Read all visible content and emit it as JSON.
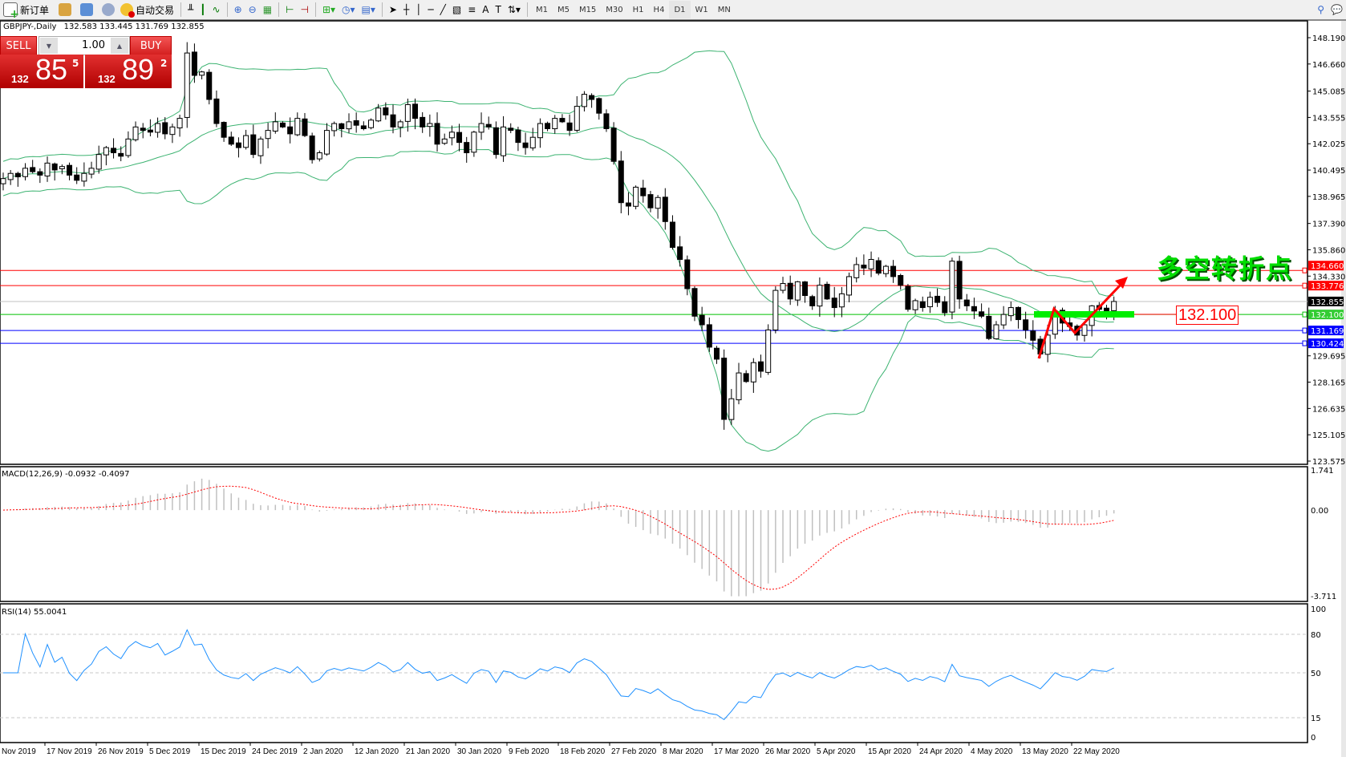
{
  "toolbar": {
    "new_order": "新订单",
    "auto_trading": "自动交易",
    "timeframes": [
      "M1",
      "M5",
      "M15",
      "M30",
      "H1",
      "H4",
      "D1",
      "W1",
      "MN"
    ],
    "active_timeframe": "D1"
  },
  "chart_header": {
    "symbol": "GBPJPY-,Daily",
    "ohlc": "132.583 133.445 131.769 132.855"
  },
  "trade_panel": {
    "sell_label": "SELL",
    "buy_label": "BUY",
    "lot": "1.00",
    "sell_big": "132",
    "sell_main": "85",
    "sell_sup": "5",
    "buy_big": "132",
    "buy_main": "89",
    "buy_sup": "2"
  },
  "annotations": {
    "turning_point": "多空转折点",
    "level_label": "132.100"
  },
  "colors": {
    "resistance": "#ff0000",
    "support": "#0000ff",
    "pivot": "#00c000",
    "bands": "#3cb371",
    "signal": "#ff0000",
    "histogram": "#c0c0c0"
  },
  "chart_data": [
    {
      "type": "candlestick",
      "title": "GBPJPY-,Daily",
      "indicator": "Bollinger Bands",
      "closes": [
        140.0,
        140.3,
        140.1,
        140.6,
        140.4,
        140.2,
        140.9,
        140.5,
        140.7,
        140.2,
        139.9,
        140.3,
        140.6,
        141.4,
        141.8,
        141.5,
        141.3,
        142.3,
        143.0,
        142.8,
        142.7,
        143.2,
        142.6,
        143.0,
        143.5,
        147.3,
        146.0,
        146.2,
        144.6,
        143.2,
        142.4,
        142.0,
        141.8,
        142.5,
        141.4,
        142.3,
        142.8,
        143.3,
        143.0,
        142.6,
        143.5,
        142.5,
        141.1,
        141.5,
        142.8,
        143.2,
        142.9,
        143.3,
        143.1,
        142.9,
        143.4,
        144.1,
        143.7,
        143.0,
        143.3,
        144.3,
        143.5,
        143.0,
        143.2,
        142.0,
        142.3,
        142.7,
        142.1,
        141.5,
        142.7,
        143.2,
        143.0,
        141.4,
        143.0,
        142.8,
        142.1,
        141.8,
        142.4,
        143.2,
        142.9,
        143.5,
        143.3,
        142.8,
        144.2,
        144.9,
        144.6,
        143.8,
        142.9,
        141.0,
        138.6,
        138.4,
        139.5,
        139.0,
        138.3,
        138.9,
        137.5,
        136.0,
        135.3,
        133.6,
        132.0,
        131.5,
        130.2,
        129.5,
        126.0,
        127.2,
        128.7,
        128.2,
        129.3,
        128.8,
        131.2,
        133.5,
        133.9,
        133.0,
        134.0,
        133.2,
        132.6,
        133.8,
        133.0,
        132.5,
        133.3,
        134.3,
        135.0,
        134.8,
        135.3,
        134.5,
        134.9,
        134.3,
        133.8,
        132.4,
        132.9,
        132.5,
        133.1,
        132.8,
        132.2,
        135.2,
        133.0,
        132.6,
        132.3,
        132.0,
        130.7,
        131.5,
        132.1,
        132.5,
        131.8,
        131.2,
        130.6,
        129.8,
        130.9,
        132.3,
        131.6,
        131.4,
        130.9,
        131.5,
        132.6,
        132.4,
        132.3,
        132.855
      ],
      "price_ticks": [
        "148.190",
        "146.660",
        "145.085",
        "143.555",
        "142.025",
        "140.495",
        "138.965",
        "137.390",
        "135.860",
        "134.330",
        "129.695",
        "128.165",
        "126.635",
        "125.105",
        "123.575"
      ],
      "ylim": [
        123.575,
        148.19
      ],
      "levels": [
        {
          "value": 134.66,
          "label": "134.660",
          "color": "#ff0000"
        },
        {
          "value": 133.776,
          "label": "133.776",
          "color": "#ff0000"
        },
        {
          "value": 132.855,
          "label": "132.855",
          "color": "#c0c0c0",
          "tag": "#000000"
        },
        {
          "value": 132.1,
          "label": "132.100",
          "color": "#00c000",
          "tag": "#33cc33"
        },
        {
          "value": 131.169,
          "label": "131.169",
          "color": "#0000ff"
        },
        {
          "value": 130.424,
          "label": "130.424",
          "color": "#0000ff"
        }
      ],
      "dates": [
        "Nov 2019",
        "17 Nov 2019",
        "26 Nov 2019",
        "5 Dec 2019",
        "15 Dec 2019",
        "24 Dec 2019",
        "2 Jan 2020",
        "12 Jan 2020",
        "21 Jan 2020",
        "30 Jan 2020",
        "9 Feb 2020",
        "18 Feb 2020",
        "27 Feb 2020",
        "8 Mar 2020",
        "17 Mar 2020",
        "26 Mar 2020",
        "5 Apr 2020",
        "15 Apr 2020",
        "24 Apr 2020",
        "4 May 2020",
        "13 May 2020",
        "22 May 2020"
      ]
    },
    {
      "type": "bar+line",
      "title": "MACD(12,26,9) -0.0932 -0.4097",
      "ticks": [
        "1.741",
        "0.00",
        "-3.711"
      ],
      "ylim": [
        -3.711,
        1.741
      ]
    },
    {
      "type": "line",
      "title": "RSI(14) 55.0041",
      "ticks": [
        "100",
        "80",
        "50",
        "15",
        "0"
      ],
      "levels": [
        80,
        50,
        15
      ],
      "ylim": [
        0,
        100
      ]
    }
  ]
}
